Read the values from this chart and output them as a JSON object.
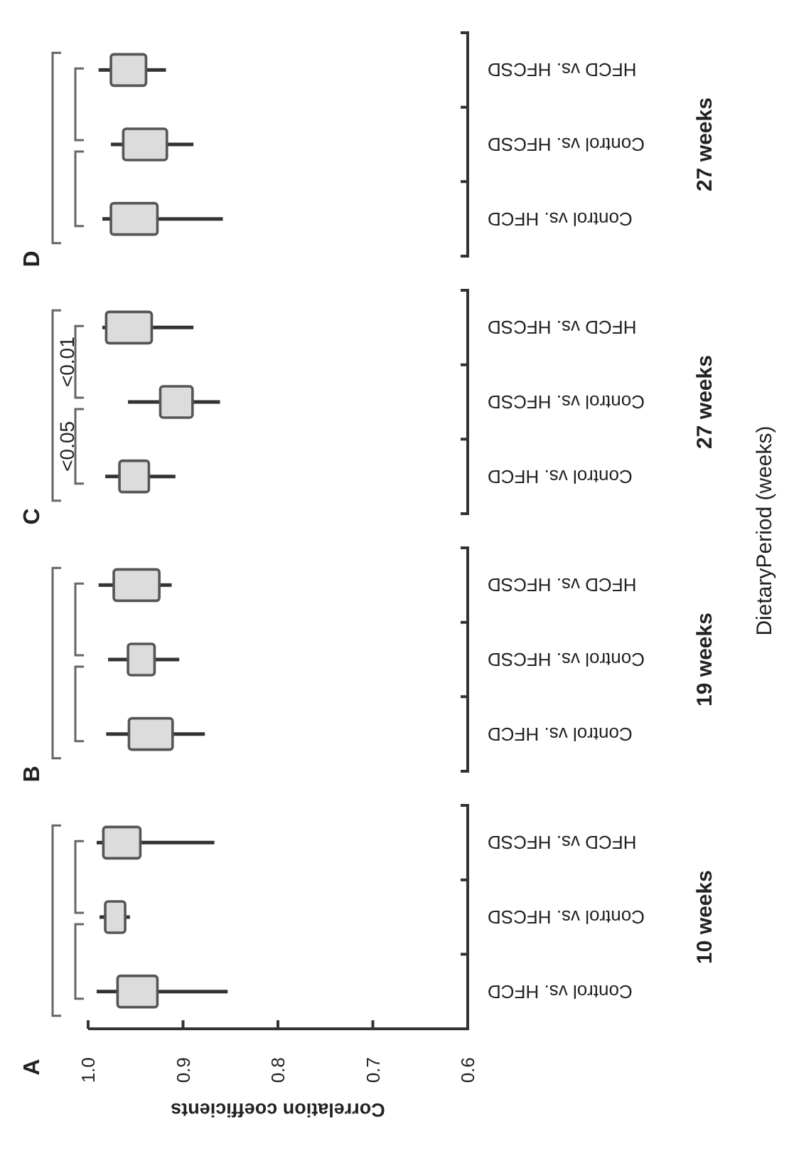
{
  "chart_data": [
    {
      "type": "box",
      "orientation": "horizontal",
      "title": "D",
      "ylabel": "27 weeks",
      "categories": [
        "HFCD vs. HFCSD",
        "Control vs. HFCSD",
        "Control vs. HFCD"
      ],
      "color": "#dcdcdc",
      "boxes": [
        {
          "low": 0.918,
          "q1": 0.939,
          "q3": 0.976,
          "high": 0.989
        },
        {
          "low": 0.889,
          "q1": 0.917,
          "q3": 0.963,
          "high": 0.976
        },
        {
          "low": 0.858,
          "q1": 0.927,
          "q3": 0.976,
          "high": 0.985
        }
      ],
      "xlim": [
        1.0,
        0.6
      ],
      "tick_labels": "y"
    },
    {
      "type": "box",
      "orientation": "horizontal",
      "title": "C",
      "ylabel": "27 weeks",
      "categories": [
        "HFCD vs. HFCSD",
        "Control vs. HFCSD",
        "Control vs. HFCD"
      ],
      "color": "#dcdcdc",
      "boxes": [
        {
          "low": 0.889,
          "q1": 0.933,
          "q3": 0.981,
          "high": 0.985
        },
        {
          "low": 0.861,
          "q1": 0.89,
          "q3": 0.924,
          "high": 0.958
        },
        {
          "low": 0.908,
          "q1": 0.936,
          "q3": 0.967,
          "high": 0.982
        }
      ],
      "xlim": [
        1.0,
        0.6
      ],
      "tick_labels": "y",
      "annotations": [
        "<0.01",
        "<0.05"
      ]
    },
    {
      "type": "box",
      "orientation": "horizontal",
      "title": "B",
      "ylabel": "19 weeks",
      "categories": [
        "HFCD vs. HFCSD",
        "Control vs. HFCSD",
        "Control vs. HFCD"
      ],
      "color": "#dcdcdc",
      "boxes": [
        {
          "low": 0.912,
          "q1": 0.925,
          "q3": 0.973,
          "high": 0.989
        },
        {
          "low": 0.904,
          "q1": 0.93,
          "q3": 0.958,
          "high": 0.979
        },
        {
          "low": 0.877,
          "q1": 0.911,
          "q3": 0.957,
          "high": 0.981
        }
      ],
      "xlim": [
        1.0,
        0.6
      ],
      "tick_labels": "y"
    },
    {
      "type": "box",
      "orientation": "horizontal",
      "title": "A",
      "ylabel": "10 weeks",
      "xlabel": "Correlation coefficients",
      "categories": [
        "HFCD vs. HFCSD",
        "Control vs. HFCSD",
        "Control vs. HFCD"
      ],
      "color": "#dcdcdc",
      "boxes": [
        {
          "low": 0.867,
          "q1": 0.945,
          "q3": 0.984,
          "high": 0.991
        },
        {
          "low": 0.956,
          "q1": 0.961,
          "q3": 0.982,
          "high": 0.988
        },
        {
          "low": 0.853,
          "q1": 0.927,
          "q3": 0.969,
          "high": 0.991
        }
      ],
      "xlim": [
        1.0,
        0.6
      ],
      "xticks": [
        {
          "value": 1.0,
          "label": "1.0"
        },
        0.9,
        0.8,
        0.7,
        0.6
      ]
    },
    {
      "type": "other",
      "title": "DietaryPeriod (weeks)"
    }
  ]
}
